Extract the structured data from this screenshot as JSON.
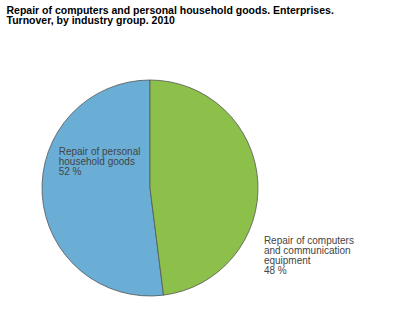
{
  "chart_data": {
    "type": "pie",
    "title": "Repair of computers and personal household goods. Enterprises.\nTurnover, by industry group. 2010",
    "categories": [
      "Repair of personal\nhousehold goods",
      "Repair of computers\nand communication\nequipment"
    ],
    "values": [
      52,
      48
    ],
    "value_labels": [
      "52 %",
      "48 %"
    ],
    "data_labels": true,
    "colors": [
      "#6aaed6",
      "#8dc04b"
    ]
  }
}
